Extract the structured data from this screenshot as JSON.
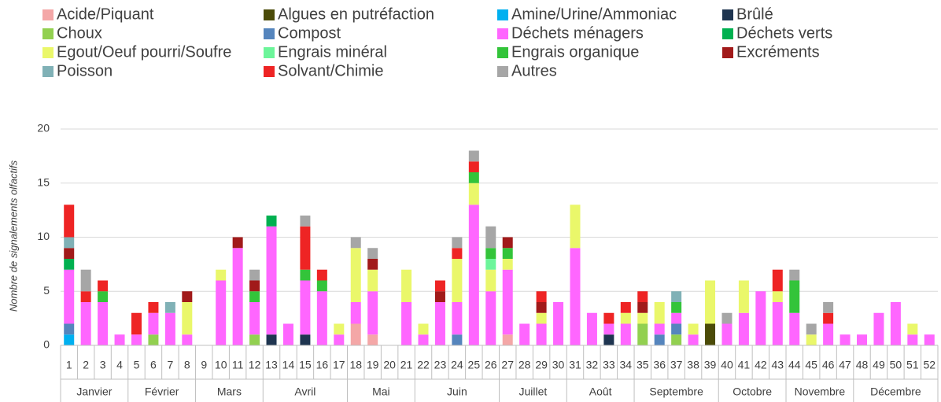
{
  "chart_data": {
    "type": "stacked_bar",
    "y_label": "Nombre de signalements olfactifs",
    "categories": [
      "1",
      "2",
      "3",
      "4",
      "5",
      "6",
      "7",
      "8",
      "9",
      "10",
      "11",
      "12",
      "13",
      "14",
      "15",
      "16",
      "17",
      "18",
      "19",
      "20",
      "21",
      "22",
      "23",
      "24",
      "25",
      "26",
      "27",
      "28",
      "29",
      "30",
      "31",
      "32",
      "33",
      "34",
      "35",
      "36",
      "37",
      "38",
      "39",
      "40",
      "41",
      "42",
      "43",
      "44",
      "45",
      "46",
      "47",
      "48",
      "49",
      "50",
      "51",
      "52"
    ],
    "month_groups": [
      {
        "label": "Janvier",
        "first": "1",
        "last": "4"
      },
      {
        "label": "Février",
        "first": "5",
        "last": "8"
      },
      {
        "label": "Mars",
        "first": "9",
        "last": "12"
      },
      {
        "label": "Avril",
        "first": "13",
        "last": "17"
      },
      {
        "label": "Mai",
        "first": "18",
        "last": "21"
      },
      {
        "label": "Juin",
        "first": "22",
        "last": "26"
      },
      {
        "label": "Juillet",
        "first": "27",
        "last": "30"
      },
      {
        "label": "Août",
        "first": "31",
        "last": "34"
      },
      {
        "label": "Septembre",
        "first": "35",
        "last": "39"
      },
      {
        "label": "Octobre",
        "first": "40",
        "last": "43"
      },
      {
        "label": "Novembre",
        "first": "44",
        "last": "47"
      },
      {
        "label": "Décembre",
        "first": "48",
        "last": "52"
      }
    ],
    "ylim": [
      0,
      20
    ],
    "yticks": [
      0,
      5,
      10,
      15,
      20
    ],
    "grid": true,
    "legend": "top",
    "series": [
      {
        "name": "Acide/Piquant",
        "color": "#f4a7a7",
        "values": [
          0,
          0,
          0,
          0,
          0,
          0,
          0,
          0,
          0,
          0,
          0,
          0,
          0,
          0,
          0,
          0,
          0,
          2,
          1,
          0,
          0,
          0,
          0,
          0,
          0,
          0,
          1,
          0,
          0,
          0,
          0,
          0,
          0,
          0,
          0,
          0,
          0,
          0,
          0,
          0,
          0,
          0,
          0,
          0,
          0,
          0,
          0,
          0,
          0,
          0,
          0,
          0
        ]
      },
      {
        "name": "Algues en putréfaction",
        "color": "#4b4b08",
        "values": [
          0,
          0,
          0,
          0,
          0,
          0,
          0,
          0,
          0,
          0,
          0,
          0,
          0,
          0,
          0,
          0,
          0,
          0,
          0,
          0,
          0,
          0,
          0,
          0,
          0,
          0,
          0,
          0,
          0,
          0,
          0,
          0,
          0,
          0,
          0,
          0,
          0,
          0,
          2,
          0,
          0,
          0,
          0,
          0,
          0,
          0,
          0,
          0,
          0,
          0,
          0,
          0
        ]
      },
      {
        "name": "Amine/Urine/Ammoniac",
        "color": "#00b0f0",
        "values": [
          1,
          0,
          0,
          0,
          0,
          0,
          0,
          0,
          0,
          0,
          0,
          0,
          0,
          0,
          0,
          0,
          0,
          0,
          0,
          0,
          0,
          0,
          0,
          0,
          0,
          0,
          0,
          0,
          0,
          0,
          0,
          0,
          0,
          0,
          0,
          0,
          0,
          0,
          0,
          0,
          0,
          0,
          0,
          0,
          0,
          0,
          0,
          0,
          0,
          0,
          0,
          0
        ]
      },
      {
        "name": "Brûlé",
        "color": "#1f3550",
        "values": [
          0,
          0,
          0,
          0,
          0,
          0,
          0,
          0,
          0,
          0,
          0,
          0,
          1,
          0,
          1,
          0,
          0,
          0,
          0,
          0,
          0,
          0,
          0,
          0,
          0,
          0,
          0,
          0,
          0,
          0,
          0,
          0,
          1,
          0,
          0,
          0,
          0,
          0,
          0,
          0,
          0,
          0,
          0,
          0,
          0,
          0,
          0,
          0,
          0,
          0,
          0,
          0
        ]
      },
      {
        "name": "Choux",
        "color": "#92d050",
        "values": [
          0,
          0,
          0,
          0,
          0,
          1,
          0,
          0,
          0,
          0,
          0,
          1,
          0,
          0,
          0,
          0,
          0,
          0,
          0,
          0,
          0,
          0,
          0,
          0,
          0,
          0,
          0,
          0,
          0,
          0,
          0,
          0,
          0,
          0,
          2,
          0,
          1,
          0,
          0,
          0,
          0,
          0,
          0,
          0,
          0,
          0,
          0,
          0,
          0,
          0,
          0,
          0
        ]
      },
      {
        "name": "Compost",
        "color": "#5585bd",
        "values": [
          1,
          0,
          0,
          0,
          0,
          0,
          0,
          0,
          0,
          0,
          0,
          0,
          0,
          0,
          0,
          0,
          0,
          0,
          0,
          0,
          0,
          0,
          0,
          1,
          0,
          0,
          0,
          0,
          0,
          0,
          0,
          0,
          0,
          0,
          0,
          1,
          1,
          0,
          0,
          0,
          0,
          0,
          0,
          0,
          0,
          0,
          0,
          0,
          0,
          0,
          0,
          0
        ]
      },
      {
        "name": "Déchets ménagers",
        "color": "#ff66ff",
        "values": [
          5,
          4,
          4,
          1,
          1,
          2,
          3,
          1,
          0,
          6,
          9,
          3,
          10,
          2,
          5,
          5,
          1,
          2,
          4,
          0,
          4,
          1,
          4,
          3,
          13,
          5,
          6,
          2,
          2,
          4,
          9,
          3,
          1,
          2,
          0,
          1,
          1,
          1,
          0,
          2,
          3,
          5,
          4,
          3,
          0,
          2,
          1,
          1,
          3,
          4,
          1,
          1
        ]
      },
      {
        "name": "Déchets verts",
        "color": "#00b050",
        "values": [
          1,
          0,
          0,
          0,
          0,
          0,
          0,
          0,
          0,
          0,
          0,
          0,
          1,
          0,
          0,
          0,
          0,
          0,
          0,
          0,
          0,
          0,
          0,
          0,
          0,
          0,
          0,
          0,
          0,
          0,
          0,
          0,
          0,
          0,
          0,
          0,
          0,
          0,
          0,
          0,
          0,
          0,
          0,
          0,
          0,
          0,
          0,
          0,
          0,
          0,
          0,
          0
        ]
      },
      {
        "name": "Egout/Oeuf pourri/Soufre",
        "color": "#eaf76a",
        "values": [
          0,
          0,
          0,
          0,
          0,
          0,
          0,
          3,
          0,
          1,
          0,
          0,
          0,
          0,
          0,
          0,
          1,
          5,
          2,
          0,
          3,
          1,
          0,
          4,
          2,
          2,
          1,
          0,
          1,
          0,
          4,
          0,
          0,
          1,
          1,
          2,
          0,
          1,
          4,
          0,
          3,
          0,
          1,
          0,
          1,
          0,
          0,
          0,
          0,
          0,
          1,
          0
        ]
      },
      {
        "name": "Engrais minéral",
        "color": "#6cf59a",
        "values": [
          0,
          0,
          0,
          0,
          0,
          0,
          0,
          0,
          0,
          0,
          0,
          0,
          0,
          0,
          0,
          0,
          0,
          0,
          0,
          0,
          0,
          0,
          0,
          0,
          0,
          1,
          0,
          0,
          0,
          0,
          0,
          0,
          0,
          0,
          0,
          0,
          0,
          0,
          0,
          0,
          0,
          0,
          0,
          0,
          0,
          0,
          0,
          0,
          0,
          0,
          0,
          0
        ]
      },
      {
        "name": "Engrais organique",
        "color": "#33c43a",
        "values": [
          0,
          0,
          1,
          0,
          0,
          0,
          0,
          0,
          0,
          0,
          0,
          1,
          0,
          0,
          1,
          1,
          0,
          0,
          0,
          0,
          0,
          0,
          0,
          0,
          1,
          1,
          1,
          0,
          0,
          0,
          0,
          0,
          0,
          0,
          0,
          0,
          1,
          0,
          0,
          0,
          0,
          0,
          0,
          3,
          0,
          0,
          0,
          0,
          0,
          0,
          0,
          0
        ]
      },
      {
        "name": "Excréments",
        "color": "#a11a1a",
        "values": [
          1,
          0,
          0,
          0,
          0,
          0,
          0,
          1,
          0,
          0,
          1,
          1,
          0,
          0,
          0,
          0,
          0,
          0,
          1,
          0,
          0,
          0,
          1,
          0,
          0,
          0,
          1,
          0,
          1,
          0,
          0,
          0,
          0,
          0,
          1,
          0,
          0,
          0,
          0,
          0,
          0,
          0,
          0,
          0,
          0,
          0,
          0,
          0,
          0,
          0,
          0,
          0
        ]
      },
      {
        "name": "Poisson",
        "color": "#80b1b6",
        "values": [
          1,
          0,
          0,
          0,
          0,
          0,
          1,
          0,
          0,
          0,
          0,
          0,
          0,
          0,
          0,
          0,
          0,
          0,
          0,
          0,
          0,
          0,
          0,
          0,
          0,
          0,
          0,
          0,
          0,
          0,
          0,
          0,
          0,
          0,
          0,
          0,
          1,
          0,
          0,
          0,
          0,
          0,
          0,
          0,
          0,
          0,
          0,
          0,
          0,
          0,
          0,
          0
        ]
      },
      {
        "name": "Solvant/Chimie",
        "color": "#ee2424",
        "values": [
          3,
          1,
          1,
          0,
          2,
          1,
          0,
          0,
          0,
          0,
          0,
          0,
          0,
          0,
          4,
          1,
          0,
          0,
          0,
          0,
          0,
          0,
          1,
          1,
          1,
          0,
          0,
          0,
          1,
          0,
          0,
          0,
          1,
          1,
          1,
          0,
          0,
          0,
          0,
          0,
          0,
          0,
          2,
          0,
          0,
          1,
          0,
          0,
          0,
          0,
          0,
          0
        ]
      },
      {
        "name": "Autres",
        "color": "#a6a6a6",
        "values": [
          0,
          2,
          0,
          0,
          0,
          0,
          0,
          0,
          0,
          0,
          0,
          1,
          0,
          0,
          1,
          0,
          0,
          1,
          1,
          0,
          0,
          0,
          0,
          1,
          1,
          2,
          0,
          0,
          0,
          0,
          0,
          0,
          0,
          0,
          0,
          0,
          0,
          0,
          0,
          1,
          0,
          0,
          0,
          1,
          1,
          1,
          0,
          0,
          0,
          0,
          0,
          0
        ]
      }
    ]
  }
}
